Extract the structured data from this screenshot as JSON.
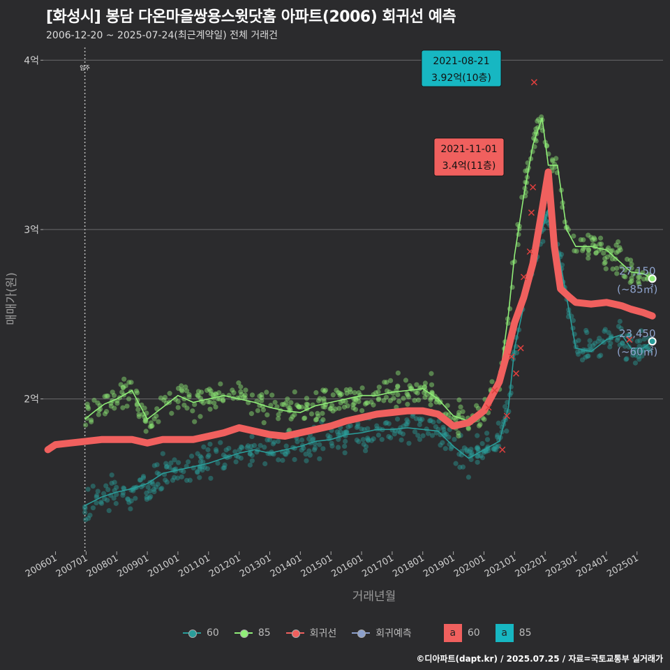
{
  "header": {
    "title": "[화성시] 봉담 다온마을쌍용스윗닷홈 아파트(2006) 회귀선 예측",
    "subtitle": "2006-12-20 ~ 2025-07-24(최근계약일) 전체 거래건"
  },
  "footer": {
    "credit": "©디아파트(dapt.kr) / 2025.07.25 / 자료=국토교통부 실거래가"
  },
  "colors": {
    "s60": "#2a9d9a",
    "s85": "#90ee78",
    "regression": "#f0605e",
    "forecast": "#8ca0cc",
    "callout_teal": "#17b7c2",
    "callout_red": "#f0605e"
  },
  "chart_data": {
    "type": "line",
    "title": "[화성시] 봉담 다온마을쌍용스윗닷홈 아파트(2006) 회귀선 예측",
    "xlabel": "거래년월",
    "ylabel": "매매가(원)",
    "ylim": [
      1.1,
      4.1
    ],
    "yticks": [
      {
        "v": 2,
        "label": "2억"
      },
      {
        "v": 3,
        "label": "3억"
      },
      {
        "v": 4,
        "label": "4억"
      }
    ],
    "xlim": [
      2005.6,
      2025.85
    ],
    "xticks": [
      "200601",
      "200701",
      "200801",
      "200901",
      "201001",
      "201101",
      "201201",
      "201301",
      "201401",
      "201501",
      "201601",
      "201701",
      "201801",
      "201901",
      "202001",
      "202101",
      "202201",
      "202301",
      "202401",
      "202501"
    ],
    "move_in": {
      "x": 2006.96,
      "label": "입주"
    },
    "series": [
      {
        "name": "60",
        "x": [
          2006.96,
          2007.5,
          2008,
          2008.5,
          2009,
          2009.5,
          2010,
          2010.5,
          2011,
          2011.5,
          2012,
          2012.5,
          2013,
          2013.5,
          2014,
          2014.5,
          2015,
          2015.5,
          2016,
          2016.5,
          2017,
          2017.5,
          2018,
          2018.5,
          2019,
          2019.5,
          2020,
          2020.5,
          2020.8,
          2021,
          2021.3,
          2021.6,
          2021.9,
          2022.1,
          2022.4,
          2022.7,
          2023,
          2023.5,
          2024,
          2024.5,
          2024.8,
          2025.2,
          2025.5
        ],
        "values": [
          1.37,
          1.42,
          1.45,
          1.47,
          1.5,
          1.56,
          1.58,
          1.6,
          1.62,
          1.65,
          1.68,
          1.7,
          1.68,
          1.7,
          1.72,
          1.75,
          1.76,
          1.79,
          1.8,
          1.82,
          1.82,
          1.83,
          1.82,
          1.81,
          1.72,
          1.65,
          1.7,
          1.75,
          1.95,
          2.3,
          2.55,
          2.8,
          3.0,
          3.12,
          2.9,
          2.6,
          2.3,
          2.28,
          2.35,
          2.38,
          2.3,
          2.3,
          2.34
        ]
      },
      {
        "name": "85",
        "x": [
          2006.96,
          2007.3,
          2007.6,
          2008,
          2008.5,
          2009,
          2009.5,
          2010,
          2010.5,
          2011,
          2011.5,
          2012,
          2012.5,
          2013,
          2013.5,
          2014,
          2014.5,
          2015,
          2015.5,
          2016,
          2016.5,
          2017,
          2017.5,
          2018,
          2018.5,
          2019,
          2019.5,
          2020,
          2020.5,
          2020.8,
          2021,
          2021.3,
          2021.6,
          2021.9,
          2022.1,
          2022.4,
          2022.7,
          2023,
          2023.5,
          2024,
          2024.5,
          2024.8,
          2025.2,
          2025.5
        ],
        "values": [
          1.88,
          1.93,
          1.97,
          2.0,
          2.05,
          1.88,
          1.95,
          2.02,
          1.98,
          2.0,
          2.02,
          2.0,
          1.98,
          1.95,
          1.93,
          1.92,
          1.96,
          1.98,
          2.0,
          2.02,
          2.02,
          2.04,
          2.05,
          2.06,
          2.0,
          1.9,
          1.87,
          1.92,
          2.1,
          2.5,
          2.85,
          3.2,
          3.5,
          3.66,
          3.38,
          3.38,
          3.0,
          2.9,
          2.9,
          2.88,
          2.8,
          2.75,
          2.74,
          2.71
        ]
      },
      {
        "name": "회귀선",
        "x": [
          2005.75,
          2006,
          2006.5,
          2007,
          2007.5,
          2008,
          2008.5,
          2009,
          2009.5,
          2010,
          2010.5,
          2011,
          2011.5,
          2012,
          2012.5,
          2013,
          2013.5,
          2014,
          2014.5,
          2015,
          2015.5,
          2016,
          2016.5,
          2017,
          2017.5,
          2018,
          2018.5,
          2019,
          2019.5,
          2020,
          2020.5,
          2020.8,
          2021,
          2021.3,
          2021.6,
          2021.9,
          2022.1,
          2022.3,
          2022.5,
          2022.8,
          2023,
          2023.5,
          2024,
          2024.5,
          2024.8,
          2025.2,
          2025.5
        ],
        "values": [
          1.7,
          1.73,
          1.74,
          1.75,
          1.76,
          1.76,
          1.76,
          1.74,
          1.76,
          1.76,
          1.76,
          1.78,
          1.8,
          1.83,
          1.81,
          1.79,
          1.78,
          1.8,
          1.82,
          1.84,
          1.87,
          1.89,
          1.91,
          1.92,
          1.93,
          1.93,
          1.91,
          1.84,
          1.86,
          1.93,
          2.1,
          2.3,
          2.45,
          2.6,
          2.8,
          3.12,
          3.34,
          2.9,
          2.65,
          2.6,
          2.57,
          2.56,
          2.57,
          2.55,
          2.53,
          2.51,
          2.49
        ]
      },
      {
        "name": "회귀예측",
        "x": [],
        "values": []
      }
    ],
    "end_labels": [
      {
        "series": "85",
        "x": 2025.5,
        "y": 2.71,
        "value": "27,150",
        "area": "(~85㎡)"
      },
      {
        "series": "60",
        "x": 2025.5,
        "y": 2.34,
        "value": "23,450",
        "area": "(~60㎡)"
      }
    ],
    "annotations": [
      {
        "date": "2021-08-21",
        "price": "3.92억(10층)",
        "x": 2021.64,
        "y": 3.87,
        "style": "teal"
      },
      {
        "date": "2021-11-01",
        "price": "3.4억(11층)",
        "x": 2021.84,
        "y": 3.34,
        "style": "red"
      }
    ],
    "legend": [
      {
        "label": "60",
        "type": "line",
        "series": "60"
      },
      {
        "label": "85",
        "type": "line",
        "series": "85"
      },
      {
        "label": "회귀선",
        "type": "line",
        "series": "회귀선"
      },
      {
        "label": "회귀예측",
        "type": "line",
        "series": "회귀예측"
      }
    ],
    "legend_fill": [
      {
        "glyph": "a",
        "label": "60",
        "color": "#f0605e"
      },
      {
        "glyph": "a",
        "label": "85",
        "color": "#17b7c2"
      }
    ]
  }
}
